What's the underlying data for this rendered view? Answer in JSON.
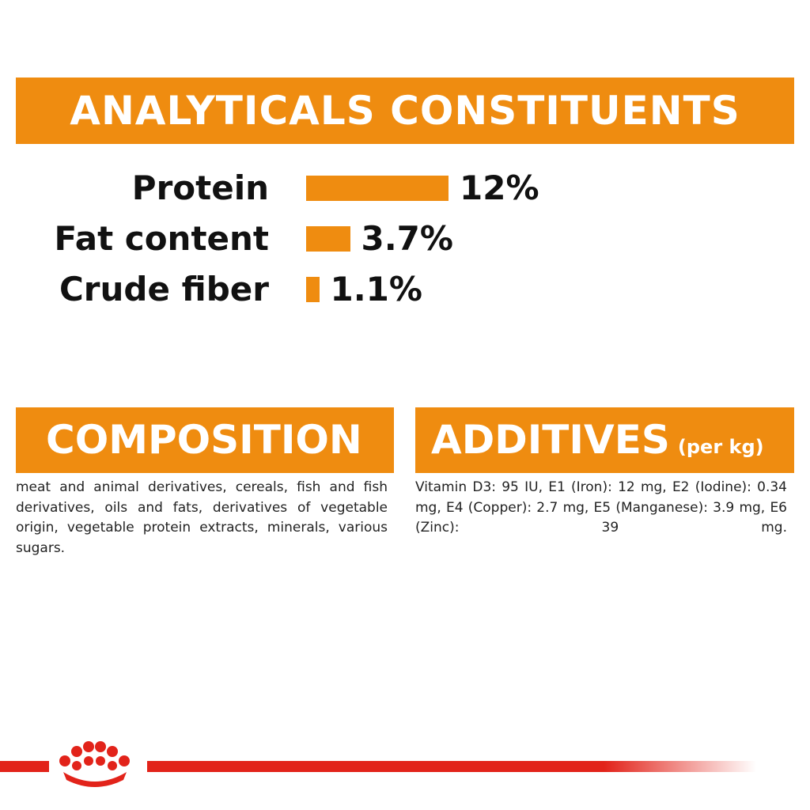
{
  "analyticals": {
    "title": "ANALYTICALS CONSTITUENTS",
    "items": [
      {
        "label": "Protein",
        "value": 12,
        "value_label": "12%"
      },
      {
        "label": "Fat content",
        "value": 3.7,
        "value_label": "3.7%"
      },
      {
        "label": "Crude fiber",
        "value": 1.1,
        "value_label": "1.1%"
      }
    ]
  },
  "composition": {
    "title": "COMPOSITION",
    "text": "meat and animal derivatives, cereals, fish and fish derivatives, oils and fats, derivatives of vegetable origin, vegetable protein extracts, minerals, various sugars."
  },
  "additives": {
    "title": "ADDITIVES",
    "unit": "(per kg)",
    "text": "Vitamin D3: 95 IU, E1 (Iron): 12 mg, E2 (Iodine): 0.34 mg, E4 (Copper): 2.7 mg, E5 (Manganese): 3.9 mg, E6 (Zinc): 39 mg."
  }
}
